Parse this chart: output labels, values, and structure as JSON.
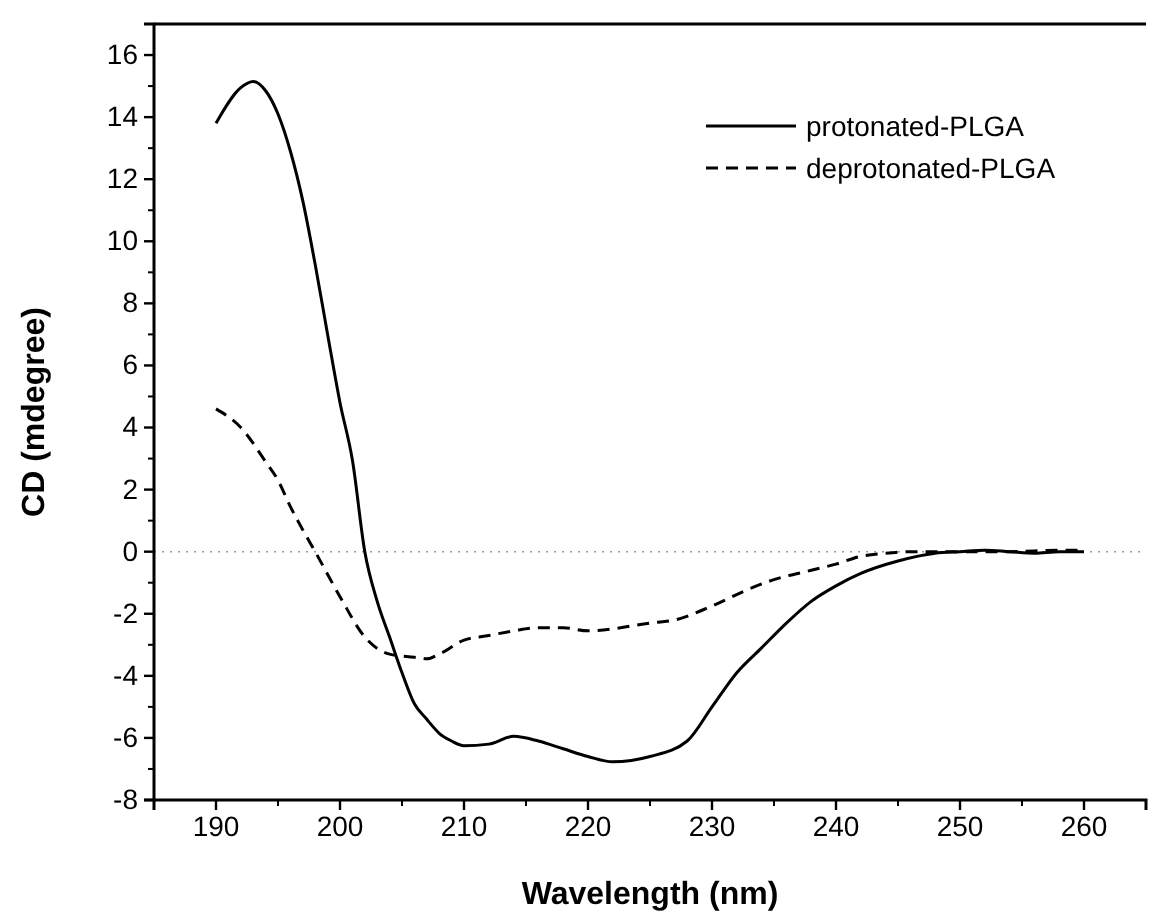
{
  "chart_data": {
    "type": "line",
    "xlabel": "Wavelength (nm)",
    "ylabel": "CD (mdegree)",
    "xlim": [
      185,
      265
    ],
    "ylim": [
      -8,
      17
    ],
    "xticks": [
      190,
      200,
      210,
      220,
      230,
      240,
      250,
      260
    ],
    "yticks": [
      -8,
      -6,
      -4,
      -2,
      0,
      2,
      4,
      6,
      8,
      10,
      12,
      14,
      16
    ],
    "grid": false,
    "legend": "top right",
    "marker": "none",
    "ref_lines": [
      {
        "axis": "y",
        "value": 0,
        "color": "#999999",
        "line_style": "dotted"
      }
    ],
    "series": [
      {
        "name": "protonated-PLGA",
        "color": "#000000",
        "line_style": "solid",
        "x": [
          190,
          192,
          193,
          194,
          195,
          196,
          197,
          198,
          199,
          200,
          201,
          202,
          203,
          204,
          205,
          206,
          207,
          208,
          209,
          210,
          212,
          214,
          216,
          218,
          220,
          222,
          225,
          228,
          230,
          232,
          234,
          236,
          238,
          240,
          242,
          245,
          248,
          250,
          252,
          254,
          256,
          258,
          260
        ],
        "values": [
          13.8,
          14.95,
          15.15,
          14.85,
          14.1,
          12.9,
          11.3,
          9.25,
          7.0,
          4.8,
          2.95,
          0,
          -1.6,
          -2.75,
          -3.9,
          -4.9,
          -5.4,
          -5.85,
          -6.1,
          -6.25,
          -6.2,
          -5.95,
          -6.1,
          -6.35,
          -6.6,
          -6.77,
          -6.6,
          -6.1,
          -5.0,
          -3.9,
          -3.1,
          -2.3,
          -1.6,
          -1.1,
          -0.7,
          -0.3,
          -0.05,
          0,
          0.05,
          0,
          -0.05,
          0,
          0
        ]
      },
      {
        "name": "deprotonated-PLGA",
        "color": "#000000",
        "line_style": "dashed",
        "x": [
          190,
          192,
          194,
          195,
          196,
          197,
          198,
          200,
          202,
          204,
          206,
          207,
          208,
          210,
          212,
          214,
          216,
          218,
          220,
          225,
          227,
          230,
          233,
          235,
          238,
          240,
          242,
          244,
          246,
          250,
          254,
          258,
          260
        ],
        "values": [
          4.6,
          4.0,
          2.9,
          2.3,
          1.45,
          0.7,
          0,
          -1.45,
          -2.75,
          -3.3,
          -3.4,
          -3.45,
          -3.3,
          -2.85,
          -2.7,
          -2.55,
          -2.45,
          -2.45,
          -2.55,
          -2.3,
          -2.2,
          -1.75,
          -1.2,
          -0.9,
          -0.6,
          -0.4,
          -0.15,
          -0.05,
          0,
          0,
          0,
          0.05,
          0.05
        ]
      }
    ]
  }
}
